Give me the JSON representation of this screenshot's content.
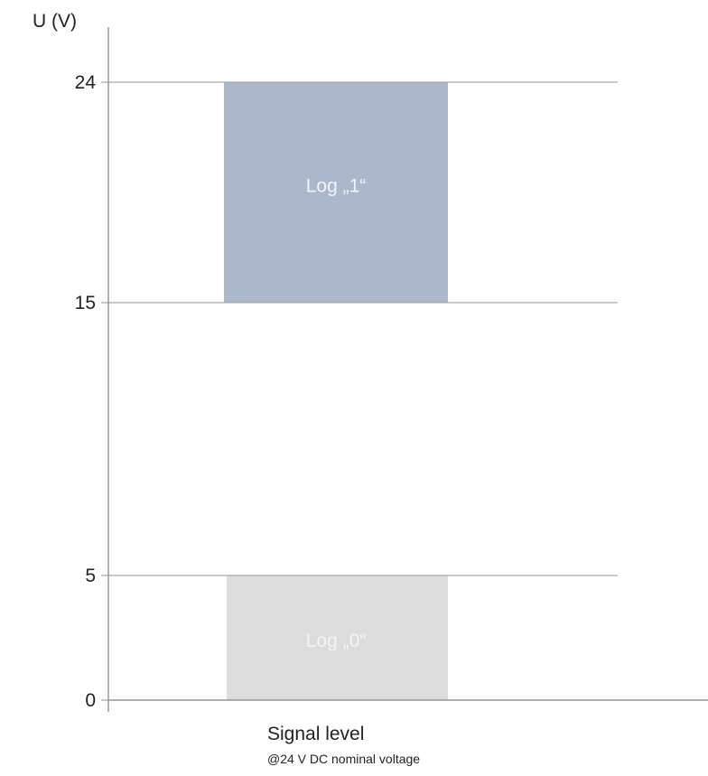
{
  "chart_data": {
    "type": "bar",
    "ylabel": "U (V)",
    "xlabel": "Signal level",
    "subtitle": "@24 V DC nominal voltage",
    "ylim": [
      0,
      24
    ],
    "yticks": [
      0,
      5,
      15,
      24
    ],
    "grid": true,
    "bands": [
      {
        "label": "Log „1“",
        "from": 15,
        "to": 24,
        "color": "#aab7cc"
      },
      {
        "label": "Log „0“",
        "from": 0,
        "to": 5,
        "color": "#dcdcdc"
      }
    ]
  }
}
